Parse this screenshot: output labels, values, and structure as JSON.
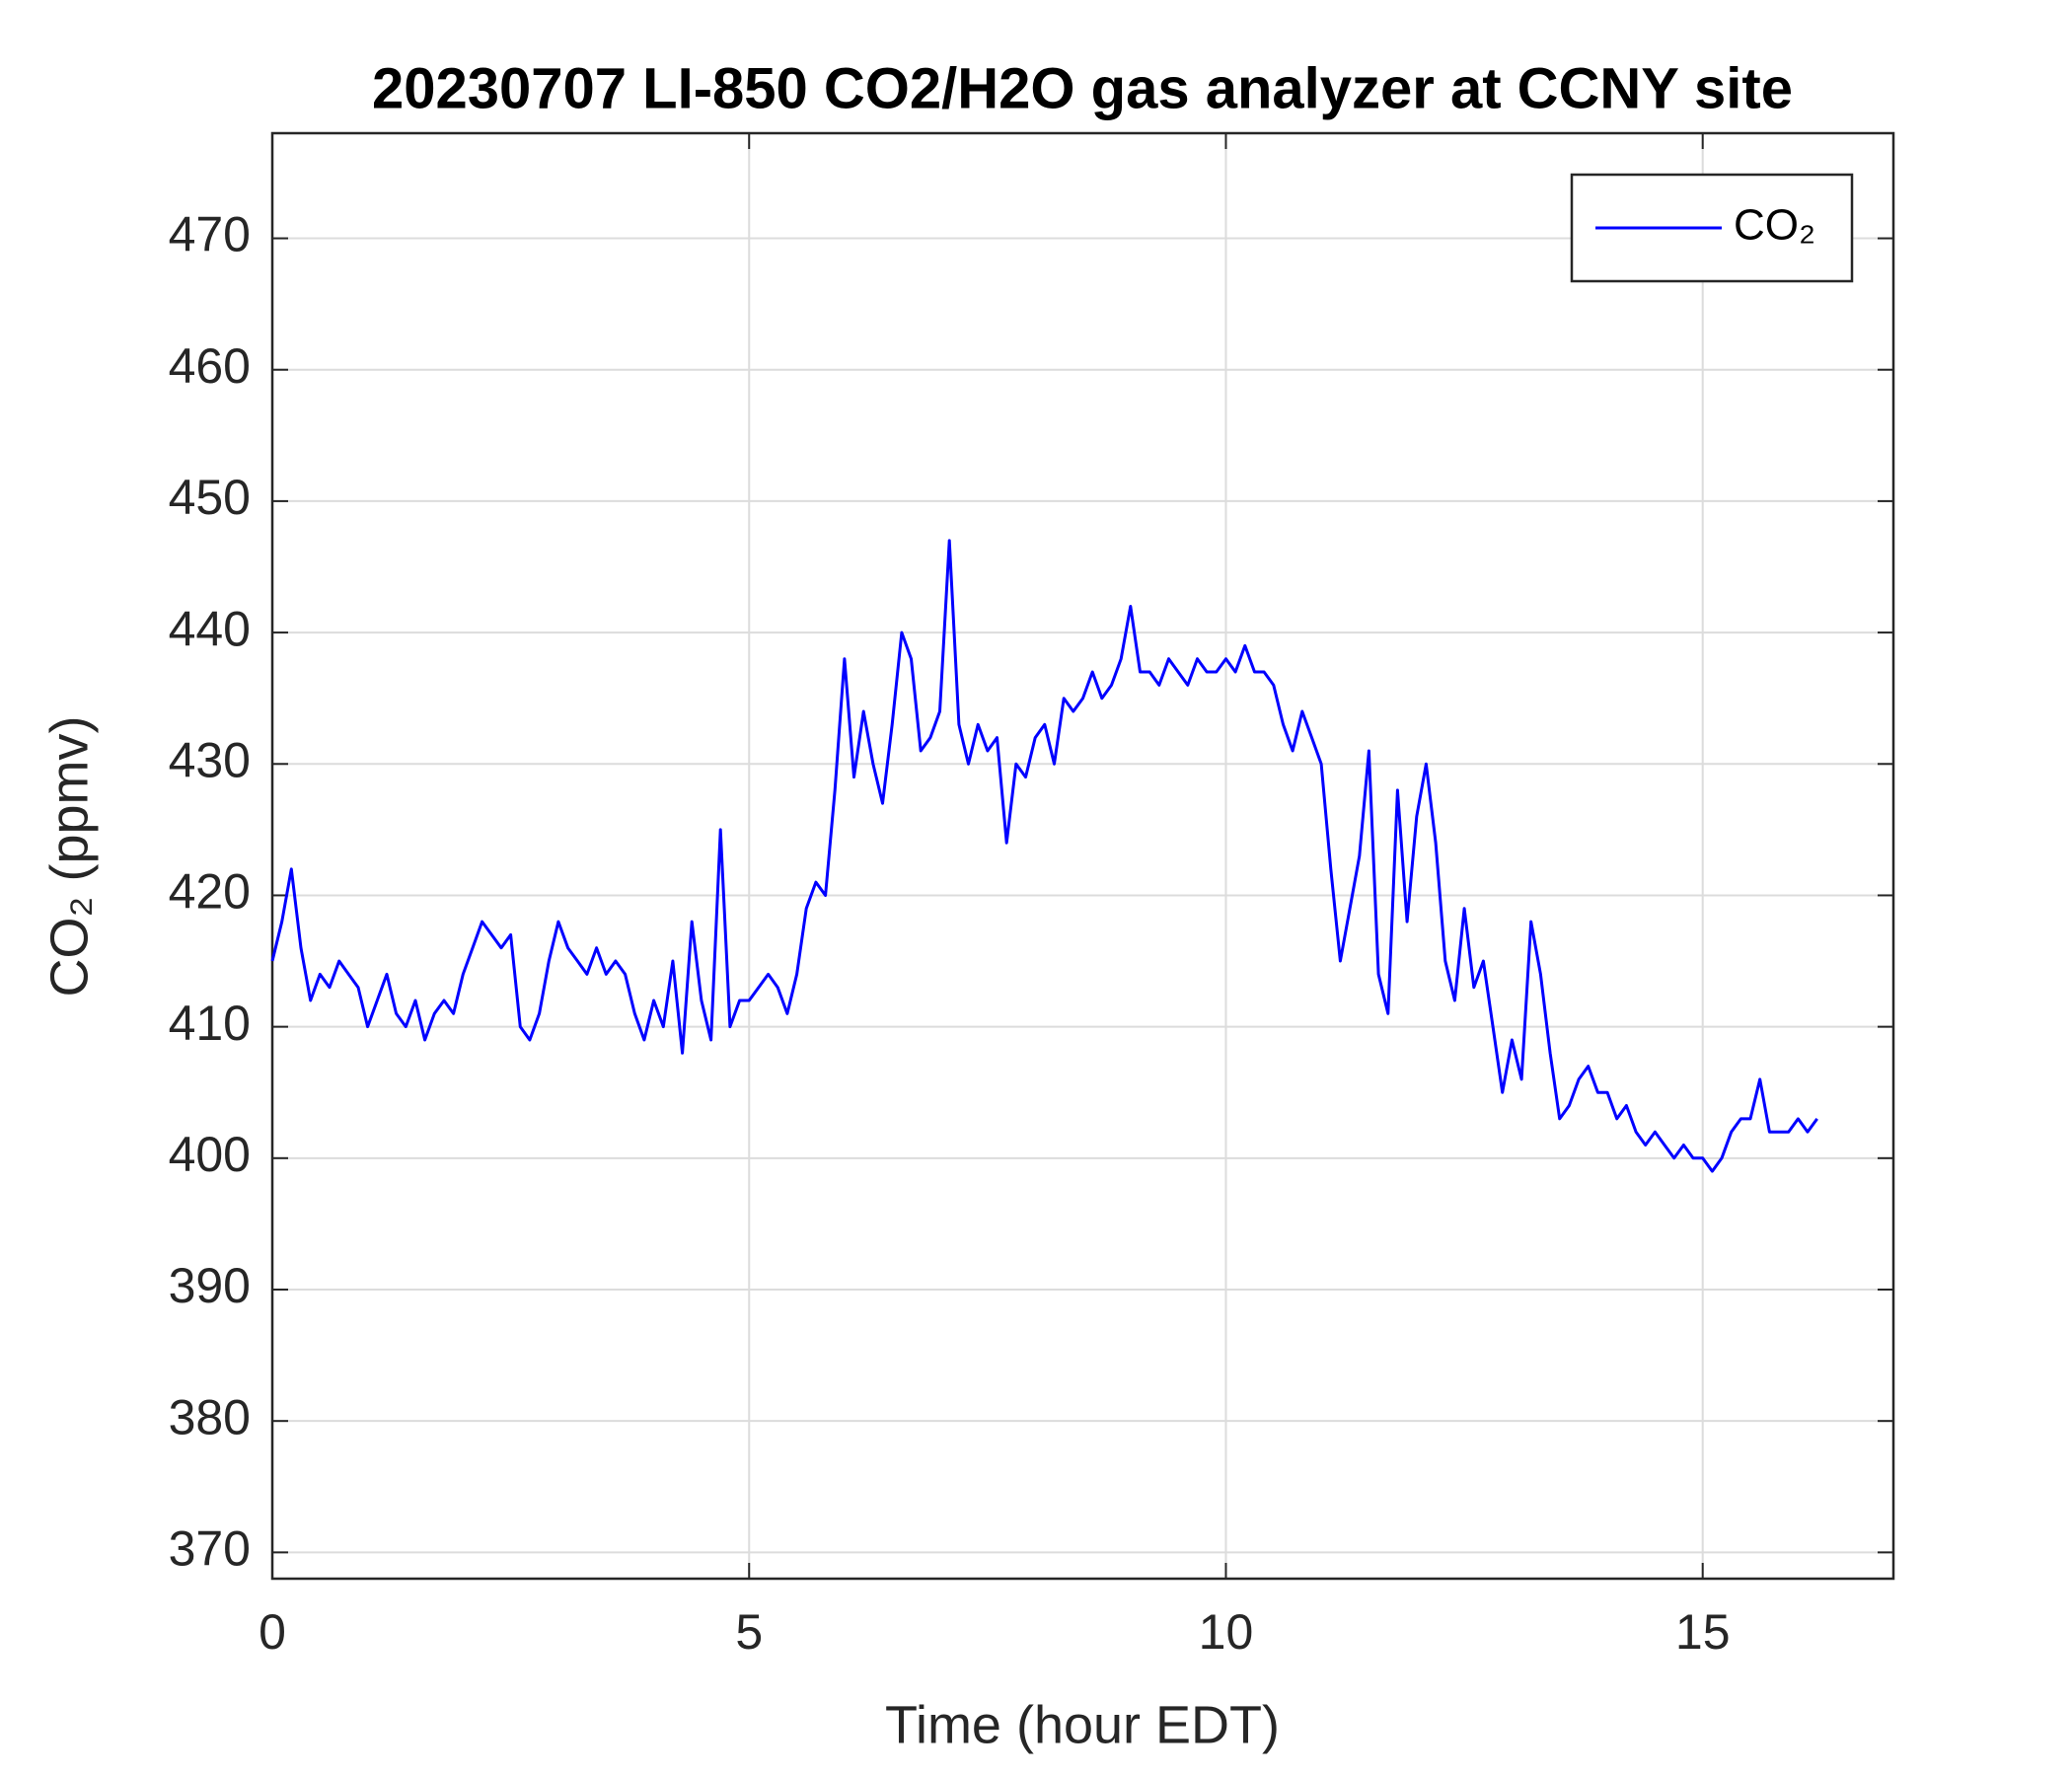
{
  "chart_data": {
    "type": "line",
    "title": "20230707 LI-850 CO2/H2O gas analyzer at CCNY site",
    "xlabel": "Time (hour EDT)",
    "ylabel": "CO₂ (ppmv)",
    "x": [
      0,
      0.1,
      0.2,
      0.3,
      0.4,
      0.5,
      0.6,
      0.7,
      0.8,
      0.9,
      1,
      1.1,
      1.2,
      1.3,
      1.4,
      1.5,
      1.6,
      1.7,
      1.8,
      1.9,
      2,
      2.1,
      2.2,
      2.3,
      2.4,
      2.5,
      2.6,
      2.7,
      2.8,
      2.9,
      3,
      3.1,
      3.2,
      3.3,
      3.4,
      3.5,
      3.6,
      3.7,
      3.8,
      3.9,
      4,
      4.1,
      4.2,
      4.3,
      4.4,
      4.5,
      4.6,
      4.7,
      4.8,
      4.9,
      5,
      5.1,
      5.2,
      5.3,
      5.4,
      5.5,
      5.6,
      5.7,
      5.8,
      5.9,
      6,
      6.1,
      6.2,
      6.3,
      6.4,
      6.5,
      6.6,
      6.7,
      6.8,
      6.9,
      7,
      7.1,
      7.2,
      7.3,
      7.4,
      7.5,
      7.6,
      7.7,
      7.8,
      7.9,
      8,
      8.1,
      8.2,
      8.3,
      8.4,
      8.5,
      8.6,
      8.7,
      8.8,
      8.9,
      9,
      9.1,
      9.2,
      9.3,
      9.4,
      9.5,
      9.6,
      9.7,
      9.8,
      9.9,
      10,
      10.1,
      10.2,
      10.3,
      10.4,
      10.5,
      10.6,
      10.7,
      10.8,
      10.9,
      11,
      11.1,
      11.2,
      11.3,
      11.4,
      11.5,
      11.6,
      11.7,
      11.8,
      11.9,
      12,
      12.1,
      12.2,
      12.3,
      12.4,
      12.5,
      12.6,
      12.7,
      12.8,
      12.9,
      13,
      13.1,
      13.2,
      13.3,
      13.4,
      13.5,
      13.6,
      13.7,
      13.8,
      13.9,
      14,
      14.1,
      14.2,
      14.3,
      14.4,
      14.5,
      14.6,
      14.7,
      14.8,
      14.9,
      15,
      15.1,
      15.2,
      15.3,
      15.4,
      15.5,
      15.6,
      15.7,
      15.8,
      15.9,
      16,
      16.1,
      16.2
    ],
    "series": [
      {
        "name": "CO₂",
        "color": "#0000ff",
        "values": [
          415,
          418,
          422,
          416,
          412,
          414,
          413,
          415,
          414,
          413,
          410,
          412,
          414,
          411,
          410,
          412,
          409,
          411,
          412,
          411,
          414,
          416,
          418,
          417,
          416,
          417,
          410,
          409,
          411,
          415,
          418,
          416,
          415,
          414,
          416,
          414,
          415,
          414,
          411,
          409,
          412,
          410,
          415,
          408,
          418,
          412,
          409,
          425,
          410,
          412,
          412,
          413,
          414,
          413,
          411,
          414,
          419,
          421,
          420,
          428,
          438,
          429,
          434,
          430,
          427,
          433,
          440,
          438,
          431,
          432,
          434,
          447,
          433,
          430,
          433,
          431,
          432,
          424,
          430,
          429,
          432,
          433,
          430,
          435,
          434,
          435,
          437,
          435,
          436,
          438,
          442,
          437,
          437,
          436,
          438,
          437,
          436,
          438,
          437,
          437,
          438,
          437,
          439,
          437,
          437,
          436,
          433,
          431,
          434,
          432,
          430,
          422,
          415,
          419,
          423,
          431,
          414,
          411,
          428,
          418,
          426,
          430,
          424,
          415,
          412,
          419,
          413,
          415,
          410,
          405,
          409,
          406,
          418,
          414,
          408,
          403,
          404,
          406,
          407,
          405,
          405,
          403,
          404,
          402,
          401,
          402,
          401,
          400,
          401,
          400,
          400,
          399,
          400,
          402,
          403,
          403,
          406,
          402,
          402,
          402,
          403,
          402,
          403
        ]
      }
    ],
    "xlim": [
      0,
      17
    ],
    "xticks": [
      0,
      5,
      10,
      15
    ],
    "ylim": [
      368,
      478
    ],
    "yticks": [
      370,
      380,
      390,
      400,
      410,
      420,
      430,
      440,
      450,
      460,
      470
    ],
    "grid": true,
    "legend": "upper right"
  }
}
